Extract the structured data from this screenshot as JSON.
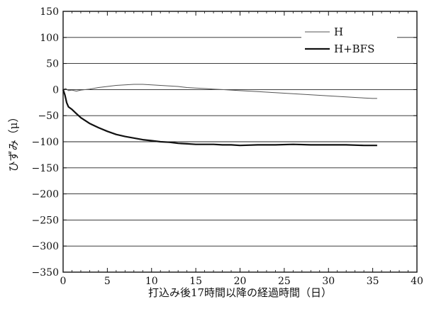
{
  "chart_data": {
    "type": "line",
    "title": "",
    "xlabel": "打込み後17時間以降の経過時間（日）",
    "ylabel": "ひずみ（μ）",
    "xlim": [
      0,
      40
    ],
    "ylim": [
      -350,
      150
    ],
    "x_ticks": [
      "0",
      "5",
      "10",
      "15",
      "20",
      "25",
      "30",
      "35",
      "40"
    ],
    "y_ticks": [
      "150",
      "100",
      "50",
      "0",
      "−50",
      "−100",
      "−150",
      "−200",
      "−250",
      "−300",
      "−350"
    ],
    "grid": "horizontal",
    "legend_position": "top-right",
    "series": [
      {
        "name": "H",
        "style": "thin",
        "color": "#555555",
        "x": [
          0,
          0.3,
          0.6,
          1,
          1.5,
          2,
          3,
          4,
          5,
          6,
          7,
          8,
          9,
          10,
          11,
          12,
          13,
          14,
          15,
          16,
          17,
          18,
          19,
          20,
          22,
          24,
          26,
          28,
          30,
          32,
          34,
          35,
          35.5
        ],
        "y": [
          0,
          2,
          -2,
          -1,
          -3,
          -1,
          1,
          4,
          6,
          8,
          9,
          10,
          10,
          9,
          8,
          7,
          6,
          4,
          3,
          2,
          1,
          0,
          -1,
          -2,
          -4,
          -6,
          -8,
          -10,
          -12,
          -14,
          -16,
          -17,
          -17
        ]
      },
      {
        "name": "H+BFS",
        "style": "thick",
        "color": "#111111",
        "x": [
          0,
          0.2,
          0.4,
          0.6,
          1,
          1.5,
          2,
          3,
          4,
          5,
          6,
          7,
          8,
          9,
          10,
          11,
          12,
          13,
          14,
          15,
          16,
          17,
          18,
          19,
          20,
          22,
          24,
          26,
          28,
          30,
          32,
          34,
          35,
          35.5
        ],
        "y": [
          0,
          -10,
          -25,
          -33,
          -38,
          -46,
          -54,
          -65,
          -73,
          -80,
          -86,
          -90,
          -93,
          -96,
          -98,
          -100,
          -101,
          -103,
          -104,
          -105,
          -105,
          -105,
          -106,
          -106,
          -107,
          -106,
          -106,
          -105,
          -106,
          -106,
          -106,
          -107,
          -107,
          -107
        ]
      }
    ]
  }
}
